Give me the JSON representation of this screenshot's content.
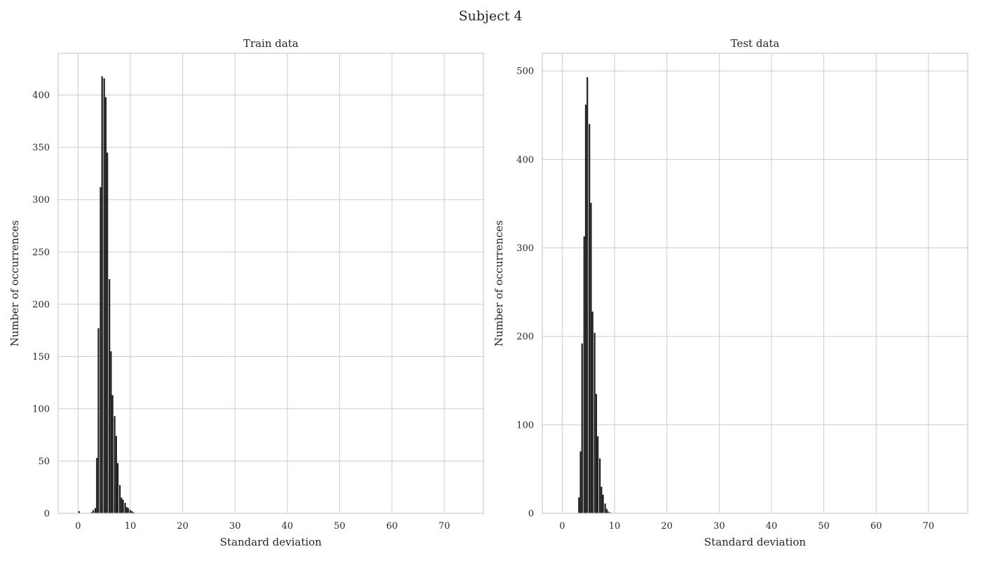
{
  "figure": {
    "title": "Subject 4"
  },
  "chart_data": [
    {
      "type": "bar",
      "title": "Train data",
      "xlabel": "Standard deviation",
      "ylabel": "Number of occurrences",
      "xlim": [
        -3.8,
        77.5
      ],
      "ylim": [
        0,
        440
      ],
      "xticks": [
        0,
        10,
        20,
        30,
        40,
        50,
        60,
        70
      ],
      "yticks": [
        0,
        50,
        100,
        150,
        200,
        250,
        300,
        350,
        400
      ],
      "bar_width": 0.3,
      "bar_color": "#222222",
      "grid": true,
      "x": [
        0.2,
        2.6,
        2.9,
        3.3,
        3.6,
        3.9,
        4.3,
        4.6,
        5.0,
        5.3,
        5.6,
        6.0,
        6.3,
        6.6,
        7.0,
        7.3,
        7.6,
        8.0,
        8.3,
        8.6,
        9.0,
        9.3,
        9.6,
        10.0,
        10.3,
        10.6
      ],
      "values": [
        2,
        1,
        3,
        5,
        53,
        177,
        312,
        418,
        416,
        398,
        345,
        224,
        155,
        113,
        93,
        74,
        48,
        27,
        15,
        13,
        10,
        6,
        5,
        3,
        2,
        1
      ]
    },
    {
      "type": "bar",
      "title": "Test data",
      "xlabel": "Standard deviation",
      "ylabel": "Number of occurrences",
      "xlim": [
        -3.8,
        77.5
      ],
      "ylim": [
        0,
        520
      ],
      "xticks": [
        0,
        10,
        20,
        30,
        40,
        50,
        60,
        70
      ],
      "yticks": [
        0,
        100,
        200,
        300,
        400,
        500
      ],
      "bar_width": 0.3,
      "bar_color": "#222222",
      "grid": true,
      "x": [
        3.2,
        3.5,
        3.8,
        4.2,
        4.5,
        4.8,
        5.2,
        5.5,
        5.8,
        6.2,
        6.5,
        6.8,
        7.2,
        7.5,
        7.8,
        8.2,
        8.5,
        8.8,
        9.2
      ],
      "values": [
        18,
        70,
        192,
        313,
        462,
        493,
        440,
        351,
        228,
        204,
        135,
        87,
        62,
        30,
        21,
        11,
        5,
        2,
        1
      ]
    }
  ]
}
